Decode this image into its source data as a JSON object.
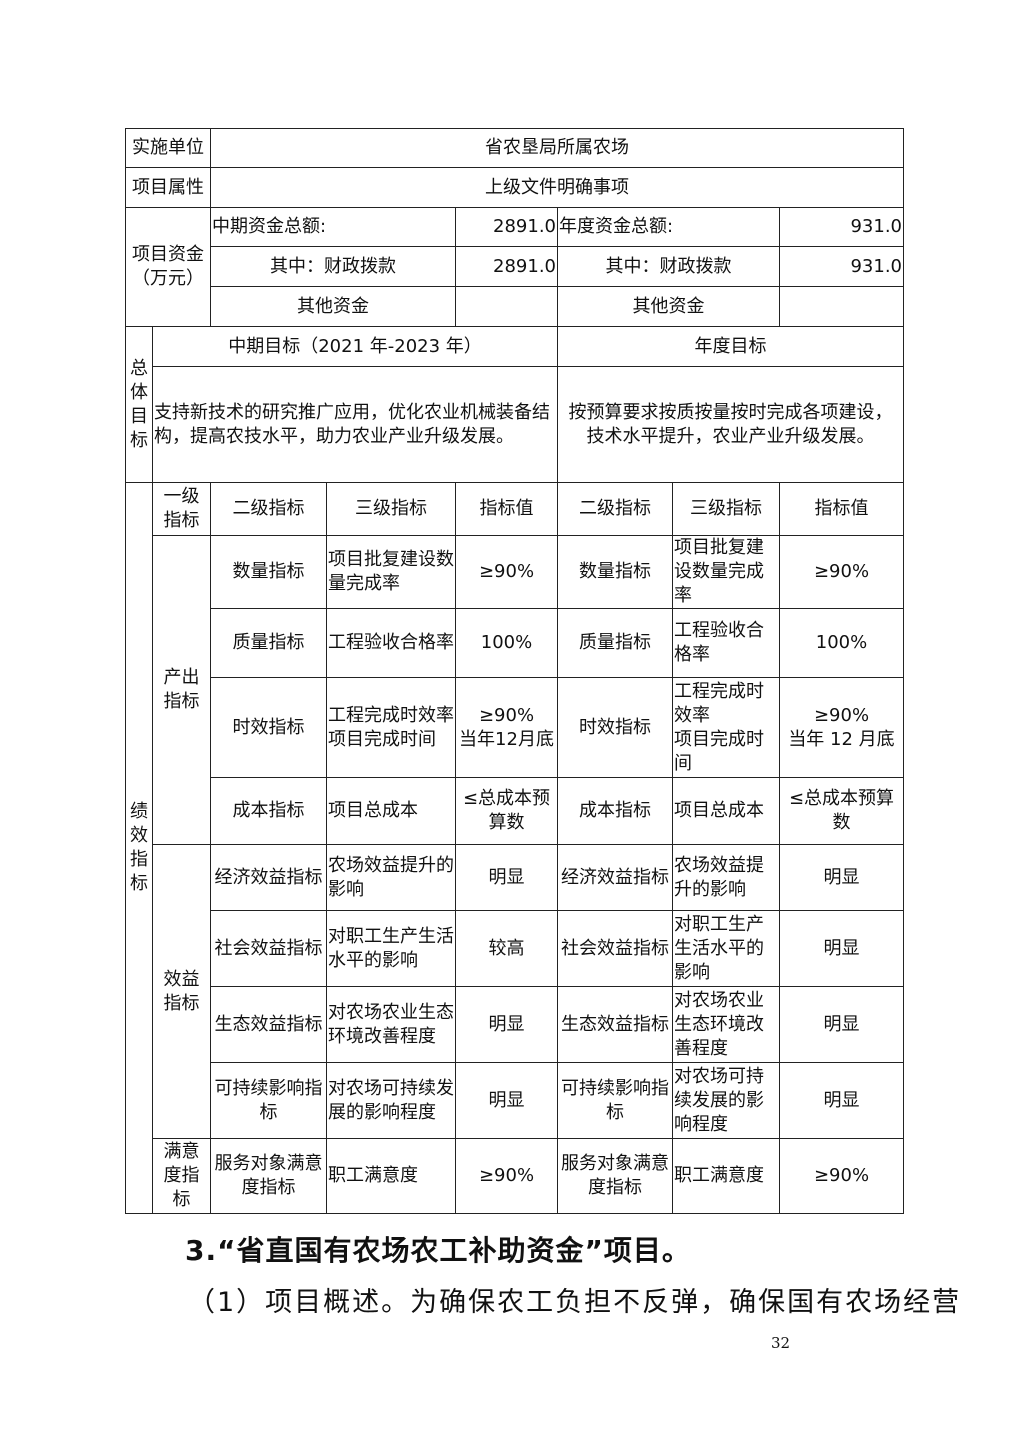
{
  "table": {
    "impl_unit_label": "实施单位",
    "impl_unit_value": "省农垦局所属农场",
    "attr_label": "项目属性",
    "attr_value": "上级文件明确事项",
    "funds_label": "项目资金\n（万元）",
    "mid_total_label": "中期资金总额:",
    "mid_total_value": "2891.0",
    "year_total_label": "年度资金总额:",
    "year_total_value": "931.0",
    "mid_fiscal_label": "其中：财政拨款",
    "mid_fiscal_value": "2891.0",
    "year_fiscal_label": "其中：财政拨款",
    "year_fiscal_value": "931.0",
    "mid_other_label": "其他资金",
    "mid_other_value": "",
    "year_other_label": "其他资金",
    "year_other_value": "",
    "goal_label": "总\n体\n目\n标",
    "mid_goal_header": "中期目标（2021 年-2023 年）",
    "year_goal_header": "年度目标",
    "mid_goal_text": "支持新技术的研究推广应用，优化农业机械装备结构，提高农技水平，助力农业产业升级发展。",
    "year_goal_text": "按预算要求按质按量按时完成各项建设，\n技术水平提升，农业产业升级发展。",
    "perf_label": "绩\n效\n指\n标",
    "headers": [
      "一级\n指标",
      "二级指标",
      "三级指标",
      "指标值",
      "二级指标",
      "三级指标",
      "指标值"
    ],
    "groups": [
      {
        "name": "产出\n指标",
        "rows": [
          {
            "l2": "数量指标",
            "l3": "项目批复建设数量完成率",
            "val": "≥90%",
            "l2b": "数量指标",
            "l3b": "项目批复建设数量完成率",
            "valb": "≥90%"
          },
          {
            "l2": "质量指标",
            "l3": "工程验收合格率",
            "val": "100%",
            "l2b": "质量指标",
            "l3b": "工程验收合格率",
            "valb": "100%"
          },
          {
            "l2": "时效指标",
            "l3": "工程完成时效率\n项目完成时间",
            "val": "≥90%\n当年12月底",
            "l2b": "时效指标",
            "l3b": "工程完成时效率\n项目完成时间",
            "valb": "≥90%\n当年 12 月底"
          },
          {
            "l2": "成本指标",
            "l3": "项目总成本",
            "val": "≤总成本预算数",
            "l2b": "成本指标",
            "l3b": "项目总成本",
            "valb": "≤总成本预算数"
          }
        ]
      },
      {
        "name": "效益\n指标",
        "rows": [
          {
            "l2": "经济效益指标",
            "l3": "农场效益提升的影响",
            "val": "明显",
            "l2b": "经济效益指标",
            "l3b": "农场效益提升的影响",
            "valb": "明显"
          },
          {
            "l2": "社会效益指标",
            "l3": "对职工生产生活水平的影响",
            "val": "较高",
            "l2b": "社会效益指标",
            "l3b": "对职工生产生活水平的影响",
            "valb": "明显"
          },
          {
            "l2": "生态效益指标",
            "l3": "对农场农业生态环境改善程度",
            "val": "明显",
            "l2b": "生态效益指标",
            "l3b": "对农场农业生态环境改善程度",
            "valb": "明显"
          },
          {
            "l2": "可持续影响指标",
            "l3": "对农场可持续发展的影响程度",
            "val": "明显",
            "l2b": "可持续影响指标",
            "l3b": "对农场可持续发展的影响程度",
            "valb": "明显"
          }
        ]
      },
      {
        "name": "满意\n度指\n标",
        "rows": [
          {
            "l2": "服务对象满意度指标",
            "l3": "职工满意度",
            "val": "≥90%",
            "l2b": "服务对象满意度指标",
            "l3b": "职工满意度",
            "valb": "≥90%"
          }
        ]
      }
    ]
  },
  "heading": "3.“省直国有农场农工补助资金”项目。",
  "paragraph": "（1）项目概述。为确保农工负担不反弹，确保国有农场经营",
  "page_number": "32"
}
